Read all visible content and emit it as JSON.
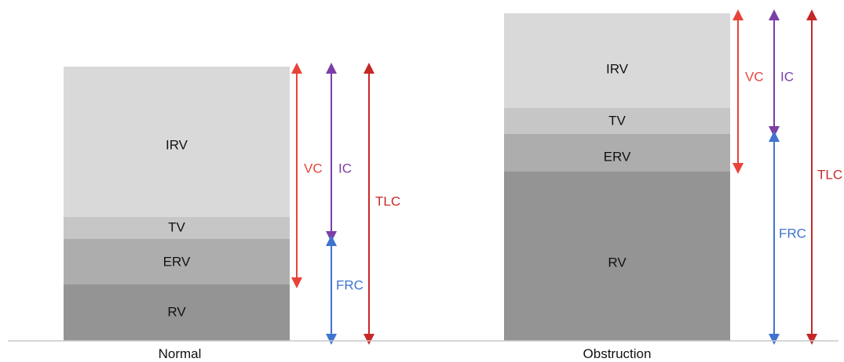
{
  "colors": {
    "irv": "#d9d9d9",
    "tv": "#c6c6c6",
    "erv": "#adadad",
    "rv": "#949494",
    "vc": "#e8433a",
    "ic": "#7b3fa6",
    "frc": "#3e74cf",
    "tlc": "#c62828",
    "baseline": "#c8c8c8"
  },
  "panels": [
    {
      "name": "Normal",
      "segments": [
        {
          "label": "IRV",
          "color_key": "irv"
        },
        {
          "label": "TV",
          "color_key": "tv"
        },
        {
          "label": "ERV",
          "color_key": "erv"
        },
        {
          "label": "RV",
          "color_key": "rv"
        }
      ],
      "arrows": [
        {
          "label": "VC",
          "color_key": "vc"
        },
        {
          "label": "IC",
          "color_key": "ic"
        },
        {
          "label": "FRC",
          "color_key": "frc"
        },
        {
          "label": "TLC",
          "color_key": "tlc"
        }
      ]
    },
    {
      "name": "Obstruction",
      "segments": [
        {
          "label": "IRV",
          "color_key": "irv"
        },
        {
          "label": "TV",
          "color_key": "tv"
        },
        {
          "label": "ERV",
          "color_key": "erv"
        },
        {
          "label": "RV",
          "color_key": "rv"
        }
      ],
      "arrows": [
        {
          "label": "VC",
          "color_key": "vc"
        },
        {
          "label": "IC",
          "color_key": "ic"
        },
        {
          "label": "FRC",
          "color_key": "frc"
        },
        {
          "label": "TLC",
          "color_key": "tlc"
        }
      ]
    }
  ]
}
